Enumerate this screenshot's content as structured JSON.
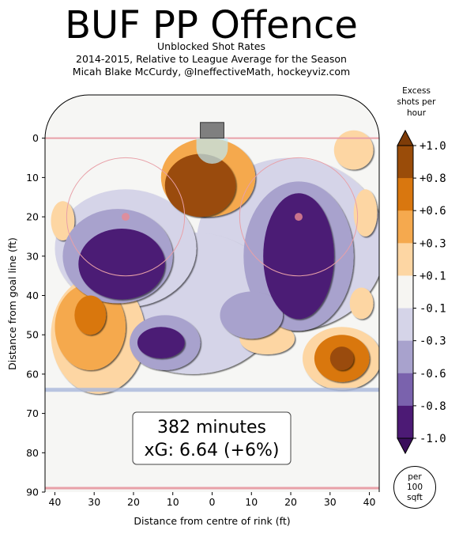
{
  "chart_data": {
    "type": "heatmap",
    "title": "BUF PP Offence",
    "subtitle_lines": [
      "Unblocked Shot Rates",
      "2014-2015, Relative to League Average for the Season",
      "Micah Blake McCurdy, @IneffectiveMath, hockeyviz.com"
    ],
    "xlabel": "Distance from centre of rink (ft)",
    "ylabel": "Distance from goal line (ft)",
    "xlim": [
      -42.5,
      42.5
    ],
    "ylim": [
      -11,
      90
    ],
    "x_ticks": [
      -40,
      -30,
      -20,
      -10,
      0,
      10,
      20,
      30,
      40
    ],
    "x_tick_labels": [
      "40",
      "30",
      "20",
      "10",
      "0",
      "10",
      "20",
      "30",
      "40"
    ],
    "y_ticks": [
      0,
      10,
      20,
      30,
      40,
      50,
      60,
      70,
      80,
      90
    ],
    "y_tick_labels": [
      "0",
      "10",
      "20",
      "30",
      "40",
      "50",
      "60",
      "70",
      "80",
      "90"
    ],
    "colorbar": {
      "title": "Excess shots per hour",
      "tick_labels": [
        "+1.0",
        "+0.8",
        "+0.6",
        "+0.3",
        "+0.1",
        "-0.1",
        "-0.3",
        "-0.6",
        "-0.8",
        "-1.0"
      ],
      "level_colors": [
        "#9a4c09",
        "#d9770f",
        "#f5a94e",
        "#fdd6a3",
        "#f6f5f2",
        "#d5d4e8",
        "#a8a2cd",
        "#7a62ad",
        "#4c1a75"
      ],
      "extend_high_color": "#7e3c08",
      "extend_low_color": "#3a0f5c",
      "unit_note": "per\n100\nsqft"
    },
    "annotation": {
      "minutes": "382 minutes",
      "xg": "xG: 6.64 (+6%)"
    },
    "blobs": [
      {
        "x": -3,
        "y": 12,
        "rx": 9,
        "ry": 8,
        "level": 1.0
      },
      {
        "x": -1,
        "y": 10,
        "rx": 12,
        "ry": 10,
        "level": 0.5
      },
      {
        "x": 4,
        "y": 9,
        "rx": 3,
        "ry": 4,
        "level": -0.2
      },
      {
        "x": -23,
        "y": 32,
        "rx": 11,
        "ry": 9,
        "level": -1.0
      },
      {
        "x": -24,
        "y": 30,
        "rx": 14,
        "ry": 12,
        "level": -0.5
      },
      {
        "x": -22,
        "y": 28,
        "rx": 18,
        "ry": 15,
        "level": -0.2
      },
      {
        "x": 22,
        "y": 30,
        "rx": 9,
        "ry": 16,
        "level": -1.0
      },
      {
        "x": 22,
        "y": 30,
        "rx": 14,
        "ry": 19,
        "level": -0.5
      },
      {
        "x": 20,
        "y": 27,
        "rx": 24,
        "ry": 22,
        "level": -0.2
      },
      {
        "x": -5,
        "y": 42,
        "rx": 22,
        "ry": 18,
        "level": -0.2
      },
      {
        "x": -13,
        "y": 52,
        "rx": 6,
        "ry": 4,
        "level": -1.0
      },
      {
        "x": -12,
        "y": 52,
        "rx": 9,
        "ry": 7,
        "level": -0.5
      },
      {
        "x": 10,
        "y": 45,
        "rx": 8,
        "ry": 6,
        "level": -0.5
      },
      {
        "x": -31,
        "y": 45,
        "rx": 4,
        "ry": 5,
        "level": 0.7
      },
      {
        "x": -31,
        "y": 48,
        "rx": 9,
        "ry": 11,
        "level": 0.4
      },
      {
        "x": -29,
        "y": 50,
        "rx": 12,
        "ry": 15,
        "level": 0.2
      },
      {
        "x": 33,
        "y": 56,
        "rx": 3,
        "ry": 3,
        "level": 1.0
      },
      {
        "x": 33,
        "y": 56,
        "rx": 7,
        "ry": 6,
        "level": 0.6
      },
      {
        "x": 33,
        "y": 56,
        "rx": 10,
        "ry": 8,
        "level": 0.2
      },
      {
        "x": 36,
        "y": 3,
        "rx": 5,
        "ry": 5,
        "level": 0.2
      },
      {
        "x": -38,
        "y": 21,
        "rx": 3,
        "ry": 5,
        "level": 0.2
      },
      {
        "x": 39,
        "y": 19,
        "rx": 3,
        "ry": 6,
        "level": 0.2
      },
      {
        "x": 38,
        "y": 42,
        "rx": 3,
        "ry": 4,
        "level": 0.2
      },
      {
        "x": 14,
        "y": 51,
        "rx": 7,
        "ry": 4,
        "level": 0.2
      }
    ]
  }
}
